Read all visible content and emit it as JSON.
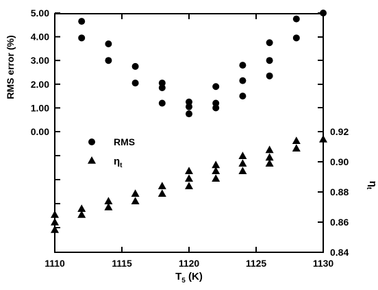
{
  "chart_data": {
    "type": "scatter",
    "xlabel": "T",
    "xlabel_sub": "5",
    "xlabel_unit": " (K)",
    "ylabel_left": "RMS error (%)",
    "ylabel_right": "η",
    "ylabel_right_sub": "t",
    "xlim": [
      1110,
      1130
    ],
    "x_ticks": [
      1110,
      1115,
      1120,
      1125,
      1130
    ],
    "x_tick_labels": [
      "1110",
      "1115",
      "1120",
      "1125",
      "1130"
    ],
    "ylim_left_labeled": [
      0,
      5
    ],
    "y_left_ticks": [
      0,
      1,
      2,
      3,
      4,
      5
    ],
    "y_left_tick_labels": [
      "0.00",
      "1.00",
      "2.00",
      "3.00",
      "4.00",
      "5.00"
    ],
    "ylim_right": [
      0.84,
      0.92
    ],
    "y_right_ticks": [
      0.84,
      0.86,
      0.88,
      0.9,
      0.92
    ],
    "y_right_tick_labels": [
      "0.84",
      "0.86",
      "0.88",
      "0.90",
      "0.92"
    ],
    "grid": false,
    "legend_position": "center-left",
    "legend": [
      {
        "label": "RMS",
        "marker": "circle"
      },
      {
        "label": "η",
        "label_sub": "t",
        "marker": "triangle"
      }
    ],
    "series": [
      {
        "name": "RMS",
        "marker": "circle",
        "axis": "left",
        "points": [
          [
            1112,
            4.65
          ],
          [
            1112,
            3.95
          ],
          [
            1114,
            3.7
          ],
          [
            1114,
            3.0
          ],
          [
            1116,
            2.75
          ],
          [
            1116,
            2.05
          ],
          [
            1118,
            2.05
          ],
          [
            1118,
            1.85
          ],
          [
            1118,
            1.2
          ],
          [
            1120,
            1.25
          ],
          [
            1120,
            1.05
          ],
          [
            1120,
            0.75
          ],
          [
            1122,
            1.9
          ],
          [
            1122,
            1.2
          ],
          [
            1122,
            1.0
          ],
          [
            1124,
            2.8
          ],
          [
            1124,
            2.15
          ],
          [
            1124,
            1.5
          ],
          [
            1126,
            3.75
          ],
          [
            1126,
            3.0
          ],
          [
            1126,
            2.35
          ],
          [
            1128,
            4.75
          ],
          [
            1128,
            3.95
          ],
          [
            1130,
            5.0
          ]
        ]
      },
      {
        "name": "η",
        "name_sub": "t",
        "marker": "triangle",
        "axis": "right",
        "points": [
          [
            1110,
            0.865
          ],
          [
            1110,
            0.86
          ],
          [
            1110,
            0.855
          ],
          [
            1112,
            0.869
          ],
          [
            1112,
            0.865
          ],
          [
            1114,
            0.874
          ],
          [
            1114,
            0.87
          ],
          [
            1116,
            0.879
          ],
          [
            1116,
            0.874
          ],
          [
            1118,
            0.884
          ],
          [
            1118,
            0.879
          ],
          [
            1120,
            0.894
          ],
          [
            1120,
            0.889
          ],
          [
            1120,
            0.884
          ],
          [
            1122,
            0.898
          ],
          [
            1122,
            0.894
          ],
          [
            1122,
            0.889
          ],
          [
            1124,
            0.904
          ],
          [
            1124,
            0.899
          ],
          [
            1124,
            0.894
          ],
          [
            1126,
            0.908
          ],
          [
            1126,
            0.903
          ],
          [
            1126,
            0.899
          ],
          [
            1128,
            0.914
          ],
          [
            1128,
            0.909
          ],
          [
            1130,
            0.915
          ]
        ]
      }
    ]
  }
}
